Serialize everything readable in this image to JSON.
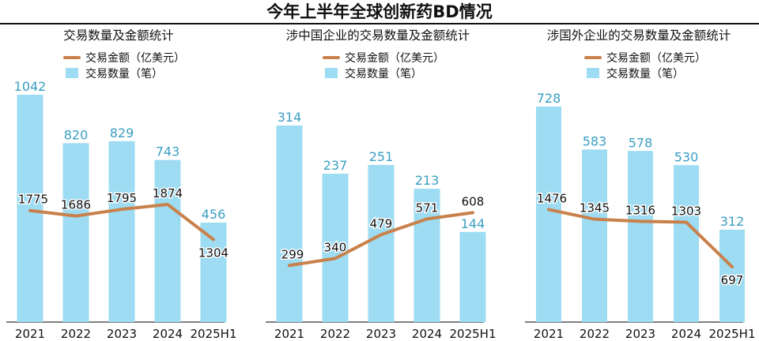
{
  "page_title": "今年上半年全球创新药BD情况",
  "colors": {
    "bar": "#9ddcf2",
    "bar_label": "#3a9fc3",
    "line": "#c9814c",
    "axis": "#333333",
    "text": "#111111"
  },
  "chart_data": [
    {
      "type": "bar",
      "title": "交易数量及金额统计",
      "categories": [
        "2021",
        "2022",
        "2023",
        "2024",
        "2025H1"
      ],
      "series": [
        {
          "name": "交易金额（亿美元）",
          "type": "line",
          "values": [
            1775,
            1686,
            1795,
            1874,
            1304
          ]
        },
        {
          "name": "交易数量（笔）",
          "type": "bar",
          "values": [
            1042,
            820,
            829,
            743,
            456
          ]
        }
      ]
    },
    {
      "type": "bar",
      "title": "涉中国企业的交易数量及金额统计",
      "categories": [
        "2021",
        "2022",
        "2023",
        "2024",
        "2025H1"
      ],
      "series": [
        {
          "name": "交易金额（亿美元）",
          "type": "line",
          "values": [
            299,
            340,
            479,
            571,
            608
          ]
        },
        {
          "name": "交易数量（笔）",
          "type": "bar",
          "values": [
            314,
            237,
            251,
            213,
            144
          ]
        }
      ]
    },
    {
      "type": "bar",
      "title": "涉国外企业的交易数量及金额统计",
      "categories": [
        "2021",
        "2022",
        "2023",
        "2024",
        "2025H1"
      ],
      "series": [
        {
          "name": "交易金额（亿美元）",
          "type": "line",
          "values": [
            1476,
            1345,
            1316,
            1303,
            697
          ]
        },
        {
          "name": "交易数量（笔）",
          "type": "bar",
          "values": [
            728,
            583,
            578,
            530,
            312
          ]
        }
      ]
    }
  ]
}
